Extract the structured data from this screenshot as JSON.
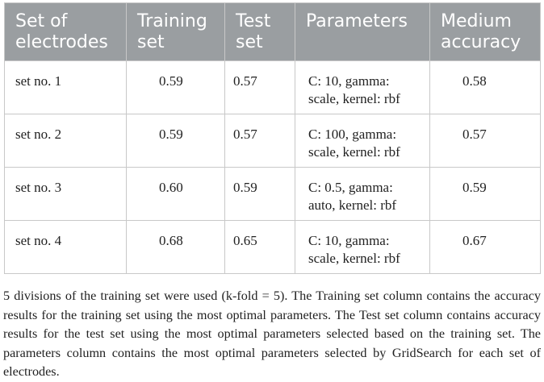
{
  "table": {
    "headers": [
      "Set of electrodes",
      "Training set",
      "Test set",
      "Parameters",
      "Medium accuracy"
    ],
    "rows": [
      {
        "set": "set no. 1",
        "training": "0.59",
        "test": "0.57",
        "parameters": "C: 10, gamma: scale, kernel: rbf",
        "medium": "0.58"
      },
      {
        "set": "set no. 2",
        "training": "0.59",
        "test": "0.57",
        "parameters": "C: 100, gamma: scale, kernel: rbf",
        "medium": "0.57"
      },
      {
        "set": "set no. 3",
        "training": "0.60",
        "test": "0.59",
        "parameters": "C: 0.5, gamma: auto, kernel: rbf",
        "medium": "0.59"
      },
      {
        "set": "set no. 4",
        "training": "0.68",
        "test": "0.65",
        "parameters": "C: 10, gamma: scale, kernel: rbf",
        "medium": "0.67"
      }
    ]
  },
  "footnote": "5 divisions of the training set were used (k-fold = 5). The Training set column contains the accuracy results for the training set using the most optimal parameters. The Test set column contains accuracy results for the test set using the most optimal parameters selected based on the training set. The parameters column contains the most optimal parameters selected by GridSearch for each set of electrodes."
}
